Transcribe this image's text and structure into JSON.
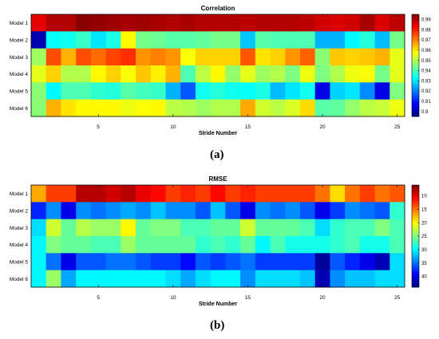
{
  "chart_data": [
    {
      "type": "heatmap",
      "panel": "(a)",
      "title": "Correlation",
      "xlabel": "Stride Number",
      "ylabel": "",
      "rows": [
        "Model 1",
        "Model 2",
        "Model 3",
        "Model 4",
        "Model 5",
        "Model 6"
      ],
      "x": [
        1,
        2,
        3,
        4,
        5,
        6,
        7,
        8,
        9,
        10,
        11,
        12,
        13,
        14,
        15,
        16,
        17,
        18,
        19,
        20,
        21,
        22,
        23,
        24,
        25
      ],
      "x_ticks": [
        5,
        10,
        15,
        20,
        25
      ],
      "colorbar": {
        "min": 0.895,
        "max": 0.995,
        "ticks": [
          0.99,
          0.98,
          0.97,
          0.96,
          0.95,
          0.94,
          0.93,
          0.92,
          0.91,
          0.9
        ],
        "reversed": false
      },
      "colormap": "jet",
      "values": [
        [
          0.985,
          0.99,
          0.99,
          0.994,
          0.993,
          0.992,
          0.991,
          0.992,
          0.991,
          0.99,
          0.991,
          0.99,
          0.99,
          0.99,
          0.989,
          0.99,
          0.99,
          0.99,
          0.989,
          0.987,
          0.986,
          0.987,
          0.991,
          0.986,
          0.989
        ],
        [
          0.9,
          0.933,
          0.934,
          0.938,
          0.93,
          0.935,
          0.958,
          0.944,
          0.943,
          0.941,
          0.941,
          0.942,
          0.944,
          0.944,
          0.927,
          0.941,
          0.94,
          0.94,
          0.94,
          0.925,
          0.925,
          0.932,
          0.936,
          0.926,
          0.944
        ],
        [
          0.948,
          0.975,
          0.965,
          0.975,
          0.972,
          0.976,
          0.978,
          0.968,
          0.97,
          0.968,
          0.957,
          0.962,
          0.962,
          0.962,
          0.974,
          0.96,
          0.962,
          0.968,
          0.973,
          0.946,
          0.963,
          0.962,
          0.963,
          0.965,
          0.955
        ],
        [
          0.955,
          0.962,
          0.95,
          0.95,
          0.958,
          0.962,
          0.957,
          0.963,
          0.959,
          0.965,
          0.94,
          0.951,
          0.958,
          0.947,
          0.955,
          0.948,
          0.95,
          0.945,
          0.956,
          0.945,
          0.95,
          0.956,
          0.957,
          0.944,
          0.955
        ],
        [
          0.946,
          0.932,
          0.94,
          0.94,
          0.937,
          0.936,
          0.941,
          0.939,
          0.938,
          0.925,
          0.916,
          0.934,
          0.936,
          0.934,
          0.933,
          0.935,
          0.926,
          0.93,
          0.934,
          0.905,
          0.928,
          0.93,
          0.921,
          0.905,
          0.945
        ],
        [
          0.946,
          0.965,
          0.96,
          0.958,
          0.958,
          0.958,
          0.956,
          0.957,
          0.958,
          0.951,
          0.95,
          0.948,
          0.95,
          0.95,
          0.966,
          0.953,
          0.951,
          0.954,
          0.961,
          0.941,
          0.942,
          0.947,
          0.951,
          0.952,
          0.956
        ]
      ]
    },
    {
      "type": "heatmap",
      "panel": "(b)",
      "title": "RMSE",
      "xlabel": "Stride Number",
      "ylabel": "",
      "rows": [
        "Model 1",
        "Model 2",
        "Model 3",
        "Model 4",
        "Model 5",
        "Model 6"
      ],
      "x": [
        1,
        2,
        3,
        4,
        5,
        6,
        7,
        8,
        9,
        10,
        11,
        12,
        13,
        14,
        15,
        16,
        17,
        18,
        19,
        20,
        21,
        22,
        23,
        24,
        25
      ],
      "x_ticks": [
        5,
        10,
        15,
        20,
        25
      ],
      "colorbar": {
        "min": 6,
        "max": 44,
        "ticks": [
          10,
          15,
          20,
          25,
          30,
          35,
          40
        ],
        "reversed": true
      },
      "colormap": "jet",
      "values": [
        [
          17,
          13,
          13,
          8,
          8,
          9,
          8,
          10,
          11,
          13,
          12,
          13,
          11,
          13,
          12,
          13,
          13,
          13,
          13,
          15,
          19,
          15,
          13,
          15,
          14
        ],
        [
          38,
          34,
          40,
          34,
          35,
          34,
          33,
          34,
          32,
          34,
          34,
          36,
          32,
          36,
          40,
          34,
          35,
          34,
          36,
          40,
          37,
          34,
          35,
          36,
          28
        ],
        [
          31,
          22,
          26,
          23,
          24,
          24,
          20,
          26,
          25,
          25,
          27,
          27,
          26,
          26,
          22,
          26,
          26,
          26,
          27,
          31,
          28,
          27,
          27,
          25,
          27
        ],
        [
          30,
          25,
          26,
          26,
          27,
          27,
          24,
          26,
          26,
          26,
          26,
          28,
          27,
          28,
          26,
          30,
          27,
          29,
          29,
          29,
          28,
          27,
          29,
          29,
          27
        ],
        [
          30,
          35,
          40,
          36,
          36,
          35,
          35,
          36,
          37,
          37,
          39,
          36,
          37,
          36,
          35,
          37,
          37,
          37,
          37,
          43,
          36,
          38,
          40,
          42,
          31
        ],
        [
          30,
          24,
          33,
          30,
          30,
          30,
          30,
          30,
          30,
          31,
          33,
          31,
          30,
          30,
          34,
          31,
          31,
          31,
          32,
          42,
          34,
          32,
          32,
          31,
          31
        ]
      ]
    }
  ]
}
